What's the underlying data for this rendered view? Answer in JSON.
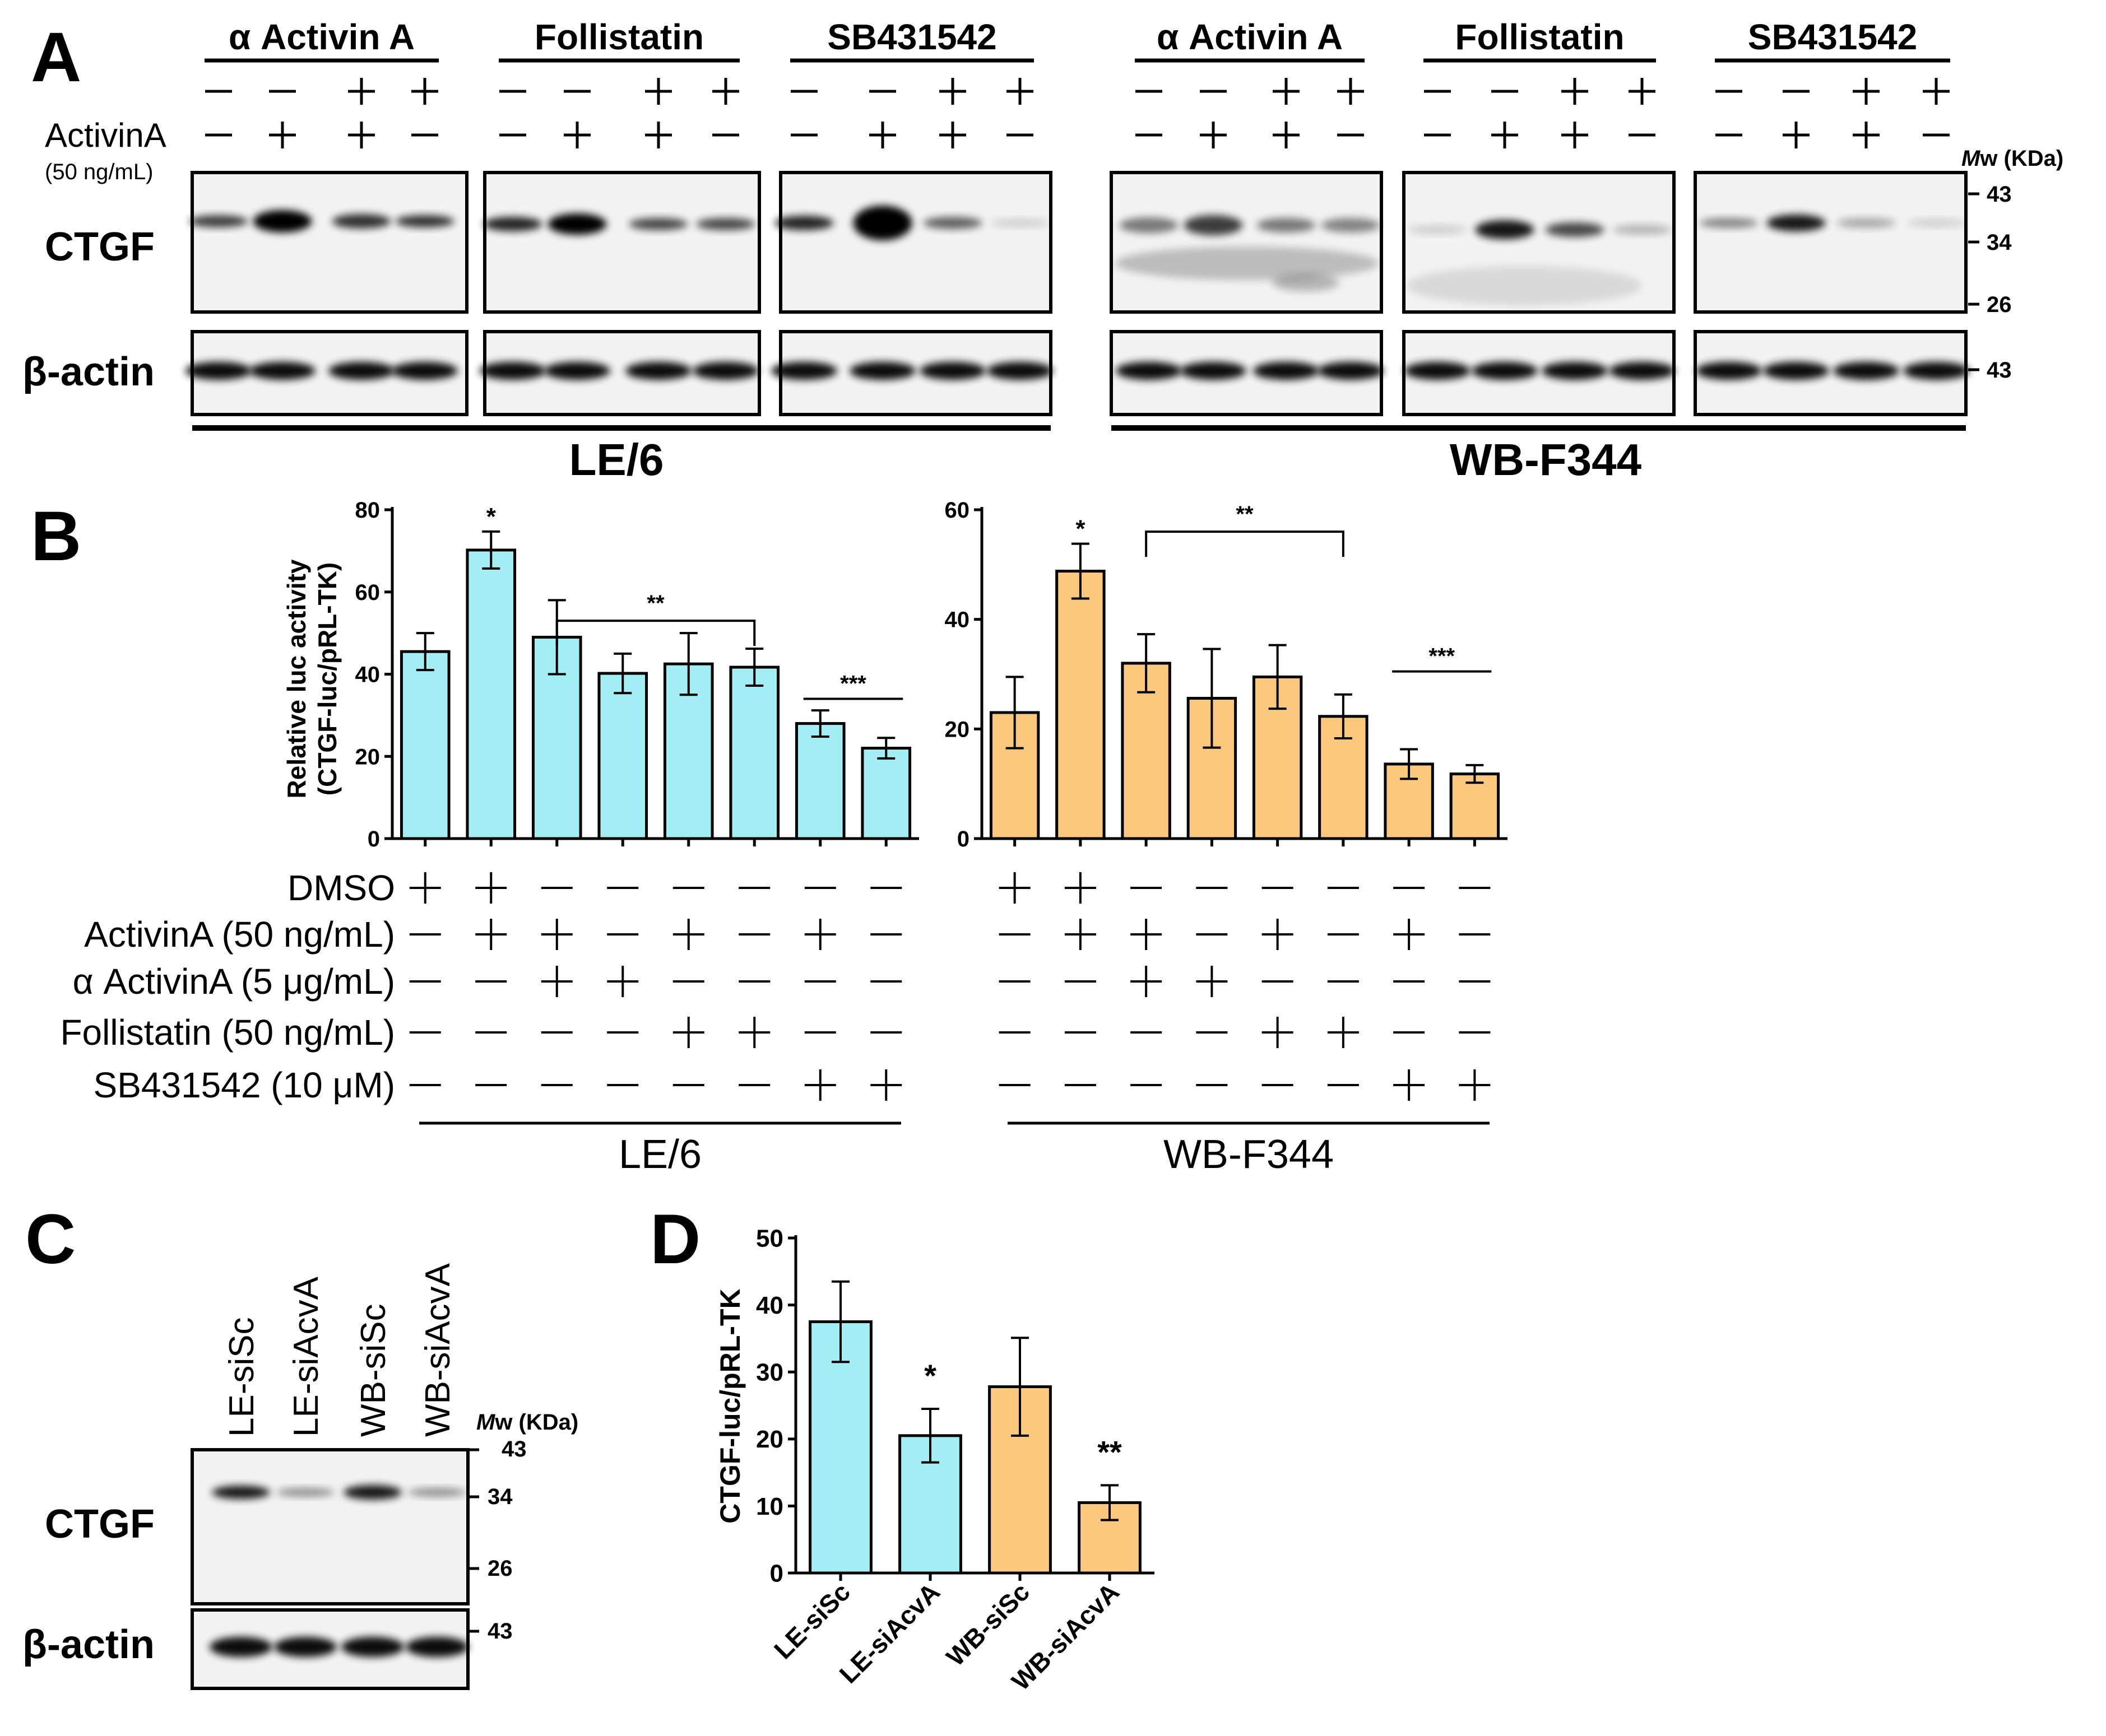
{
  "colors": {
    "cyan": "#a2eef4",
    "orange": "#fcc87d"
  },
  "panels": [
    "A",
    "B",
    "C",
    "D"
  ],
  "panelA": {
    "groups": [
      {
        "label": "α Activin A",
        "row1": [
          "−",
          "−",
          "+",
          "+"
        ],
        "row2": [
          "−",
          "+",
          "+",
          "−"
        ]
      },
      {
        "label": "Follistatin",
        "row1": [
          "−",
          "−",
          "+",
          "+"
        ],
        "row2": [
          "−",
          "+",
          "+",
          "−"
        ]
      },
      {
        "label": "SB431542",
        "row1": [
          "−",
          "−",
          "+",
          "+"
        ],
        "row2": [
          "−",
          "+",
          "+",
          "−"
        ]
      },
      {
        "label": "α Activin A",
        "row1": [
          "−",
          "−",
          "+",
          "+"
        ],
        "row2": [
          "−",
          "+",
          "+",
          "−"
        ]
      },
      {
        "label": "Follistatin",
        "row1": [
          "−",
          "−",
          "+",
          "+"
        ],
        "row2": [
          "−",
          "+",
          "+",
          "−"
        ]
      },
      {
        "label": "SB431542",
        "row1": [
          "−",
          "−",
          "+",
          "+"
        ],
        "row2": [
          "−",
          "+",
          "+",
          "−"
        ]
      }
    ],
    "activin_label": "ActivinA",
    "activin_conc": "(50 ng/mL)",
    "ctgf_label": "CTGF",
    "actin_label": "β-actin",
    "mw_label_italic": "M",
    "mw_label_rest": "w (KDa)",
    "ctgf_markers": [
      "43",
      "34",
      "26"
    ],
    "actin_marker": "43",
    "cell_lines": [
      "LE/6",
      "WB-F344"
    ]
  },
  "panelB": {
    "ylabel_line1": "Relative luc activity",
    "ylabel_line2": "(CTGF-luc/pRL-TK)",
    "row_labels": [
      "DMSO",
      "ActivinA (50 ng/mL)",
      "α ActivinA (5 μg/mL)",
      "Follistatin (50 ng/mL)",
      "SB431542 (10 μM)"
    ],
    "treatment_grid": [
      [
        "+",
        "+",
        "−",
        "−",
        "−",
        "−",
        "−",
        "−"
      ],
      [
        "−",
        "+",
        "+",
        "−",
        "+",
        "−",
        "+",
        "−"
      ],
      [
        "−",
        "−",
        "+",
        "+",
        "−",
        "−",
        "−",
        "−"
      ],
      [
        "−",
        "−",
        "−",
        "−",
        "+",
        "+",
        "−",
        "−"
      ],
      [
        "−",
        "−",
        "−",
        "−",
        "−",
        "−",
        "+",
        "+"
      ]
    ],
    "cell_lines": [
      "LE/6",
      "WB-F344"
    ]
  },
  "panelC": {
    "lanes": [
      "LE-siSc",
      "LE-siAcvA",
      "WB-siSc",
      "WB-siAcvA"
    ],
    "ctgf_label": "CTGF",
    "actin_label": "β-actin",
    "mw_label_italic": "M",
    "mw_label_rest": "w (KDa)",
    "ctgf_markers": [
      "43",
      "34",
      "26"
    ],
    "actin_marker": "43"
  },
  "chart_data": [
    {
      "type": "bar",
      "title": "LE/6",
      "ylabel": "Relative luc activity (CTGF-luc/pRL-TK)",
      "ylim": [
        0,
        80
      ],
      "yticks": [
        0,
        20,
        40,
        60,
        80
      ],
      "categories": [
        "DMSO",
        "DMSO+ActivinA",
        "ActivinA+αActivinA",
        "αActivinA",
        "ActivinA+Follistatin",
        "Follistatin",
        "ActivinA+SB431542",
        "SB431542"
      ],
      "values": [
        45.5,
        70.2,
        49,
        40.2,
        42.5,
        41.7,
        28,
        22
      ],
      "errors": [
        4.5,
        4.5,
        9,
        4.8,
        7.5,
        4.5,
        3.2,
        2.5
      ],
      "annotations": [
        {
          "text": "*",
          "bar": 1
        },
        {
          "text": "**",
          "bracket": [
            2,
            5
          ]
        },
        {
          "text": "***",
          "line": [
            6,
            7
          ]
        }
      ]
    },
    {
      "type": "bar",
      "title": "WB-F344",
      "ylim": [
        0,
        60
      ],
      "yticks": [
        0,
        20,
        40,
        60
      ],
      "categories": [
        "DMSO",
        "DMSO+ActivinA",
        "ActivinA+αActivinA",
        "αActivinA",
        "ActivinA+Follistatin",
        "Follistatin",
        "ActivinA+SB431542",
        "SB431542"
      ],
      "values": [
        23,
        48.8,
        32,
        25.6,
        29.5,
        22.3,
        13.6,
        11.8
      ],
      "errors": [
        6.5,
        5,
        5.3,
        9,
        5.8,
        4,
        2.7,
        1.6
      ],
      "annotations": [
        {
          "text": "*",
          "bar": 1
        },
        {
          "text": "**",
          "bracket": [
            2,
            5
          ]
        },
        {
          "text": "***",
          "line": [
            6,
            7
          ]
        }
      ]
    },
    {
      "type": "bar",
      "ylabel": "CTGF-luc/pRL-TK",
      "ylim": [
        0,
        50
      ],
      "yticks": [
        0,
        10,
        20,
        30,
        40,
        50
      ],
      "categories": [
        "LE-siSc",
        "LE-siAcvA",
        "WB-siSc",
        "WB-siAcvA"
      ],
      "values": [
        37.5,
        20.5,
        27.8,
        10.5
      ],
      "errors": [
        6,
        4,
        7.3,
        2.6
      ],
      "annotations": [
        {
          "text": "*",
          "bar": 1
        },
        {
          "text": "**",
          "bar": 3
        }
      ]
    }
  ]
}
